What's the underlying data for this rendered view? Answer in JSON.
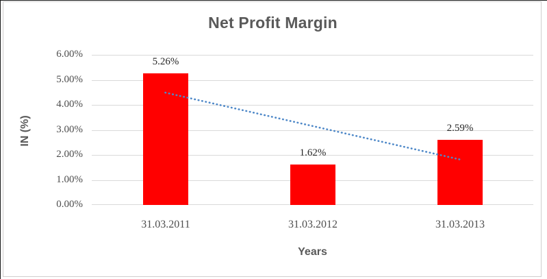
{
  "chart_data": {
    "type": "bar",
    "title": "Net Profit Margin",
    "xlabel": "Years",
    "ylabel": "IN (%)",
    "categories": [
      "31.03.2011",
      "31.03.2012",
      "31.03.2013"
    ],
    "values": [
      5.26,
      1.62,
      2.59
    ],
    "data_labels": [
      "5.26%",
      "1.62%",
      "2.59%"
    ],
    "y_ticks": [
      {
        "value": 0,
        "label": "0.00%"
      },
      {
        "value": 1,
        "label": "1.00%"
      },
      {
        "value": 2,
        "label": "2.00%"
      },
      {
        "value": 3,
        "label": "3.00%"
      },
      {
        "value": 4,
        "label": "4.00%"
      },
      {
        "value": 5,
        "label": "5.00%"
      },
      {
        "value": 6,
        "label": "6.00%"
      }
    ],
    "ylim": [
      0,
      6
    ],
    "grid": true,
    "legend": "none",
    "bar_color": "#ff0000",
    "title_color": "#595959",
    "gridline_color": "#d9d9d9",
    "trendline": {
      "type": "linear",
      "style": "dotted",
      "color": "#4e88c8",
      "start_value": 4.49,
      "end_value": 1.82
    }
  }
}
